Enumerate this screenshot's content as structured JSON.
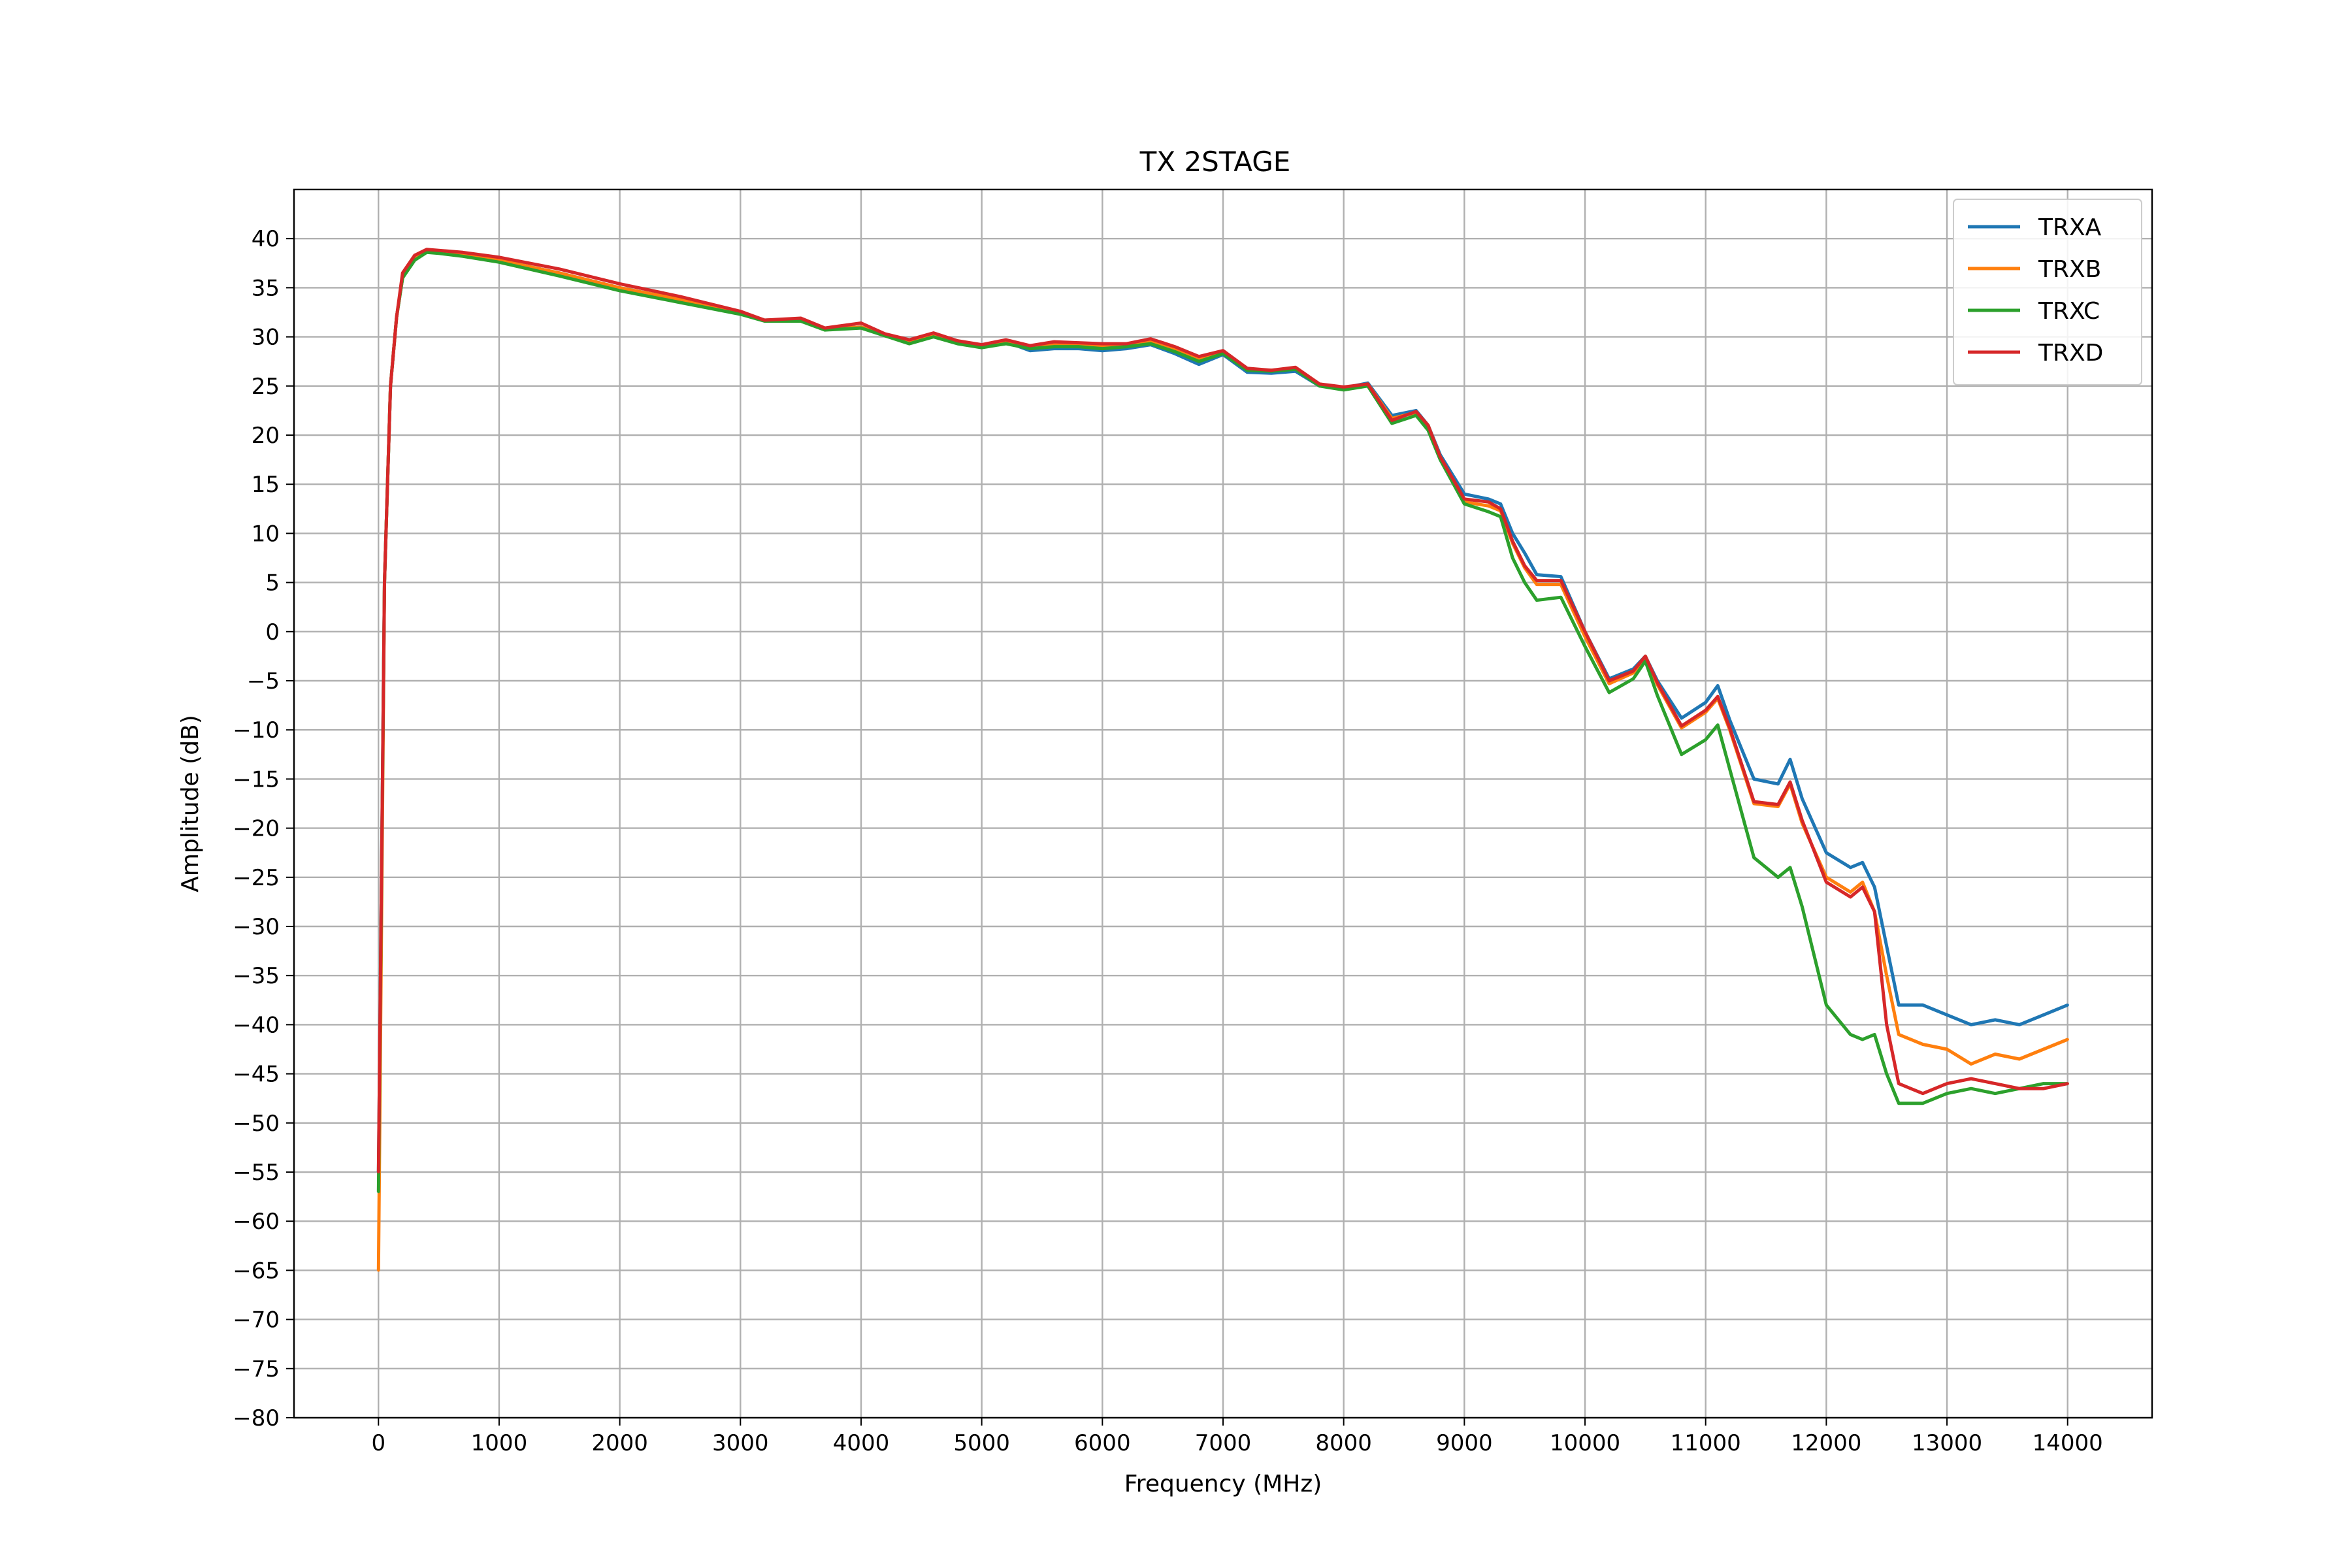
{
  "chart_data": {
    "type": "line",
    "title": "TX 2STAGE",
    "xlabel": "Frequency (MHz)",
    "ylabel": "Amplitude (dB)",
    "xlim": [
      -700,
      14700
    ],
    "ylim": [
      -80,
      45
    ],
    "xticks": [
      0,
      1000,
      2000,
      3000,
      4000,
      5000,
      6000,
      7000,
      8000,
      9000,
      10000,
      11000,
      12000,
      13000,
      14000
    ],
    "yticks": [
      -80,
      -75,
      -70,
      -65,
      -60,
      -55,
      -50,
      -45,
      -40,
      -35,
      -30,
      -25,
      -20,
      -15,
      -10,
      -5,
      0,
      5,
      10,
      15,
      20,
      25,
      30,
      35,
      40
    ],
    "xtick_labels": [
      "0",
      "1000",
      "2000",
      "3000",
      "4000",
      "5000",
      "6000",
      "7000",
      "8000",
      "9000",
      "10000",
      "11000",
      "12000",
      "13000",
      "14000"
    ],
    "ytick_labels": [
      "−80",
      "−75",
      "−70",
      "−65",
      "−60",
      "−55",
      "−50",
      "−45",
      "−40",
      "−35",
      "−30",
      "−25",
      "−20",
      "−15",
      "−10",
      "−5",
      "0",
      "5",
      "10",
      "15",
      "20",
      "25",
      "30",
      "35",
      "40"
    ],
    "grid": true,
    "legend_position": "top-right",
    "x": [
      0,
      50,
      100,
      150,
      200,
      300,
      400,
      500,
      700,
      1000,
      1500,
      2000,
      2500,
      3000,
      3200,
      3500,
      3700,
      4000,
      4200,
      4400,
      4600,
      4800,
      5000,
      5200,
      5400,
      5600,
      5800,
      6000,
      6200,
      6400,
      6600,
      6800,
      7000,
      7200,
      7400,
      7600,
      7800,
      8000,
      8200,
      8400,
      8600,
      8700,
      8800,
      9000,
      9200,
      9300,
      9400,
      9500,
      9600,
      9800,
      10000,
      10200,
      10400,
      10500,
      10600,
      10800,
      11000,
      11100,
      11200,
      11400,
      11600,
      11700,
      11800,
      12000,
      12200,
      12300,
      12400,
      12500,
      12600,
      12800,
      13000,
      13200,
      13400,
      13600,
      13800,
      14000
    ],
    "series": [
      {
        "name": "TRXA",
        "color": "#1f77b4",
        "values": [
          -55,
          5,
          25,
          32,
          36,
          38,
          38.8,
          38.7,
          38.4,
          37.8,
          36.5,
          35,
          33.8,
          32.5,
          31.7,
          31.8,
          30.8,
          31,
          30.2,
          29.5,
          30.2,
          29.4,
          29,
          29.5,
          28.6,
          28.8,
          28.8,
          28.6,
          28.8,
          29.2,
          28.3,
          27.2,
          28.2,
          26.4,
          26.3,
          26.5,
          25,
          24.8,
          25.3,
          22,
          22.5,
          21,
          18,
          14,
          13.5,
          13,
          10,
          8,
          5.8,
          5.6,
          0,
          -4.8,
          -3.8,
          -2.5,
          -5,
          -8.8,
          -7.2,
          -5.5,
          -9,
          -15,
          -15.5,
          -13,
          -17,
          -22.5,
          -24,
          -23.5,
          -26,
          -32,
          -38,
          -38,
          -39,
          -40,
          -39.5,
          -40,
          -39,
          -38
        ]
      },
      {
        "name": "TRXB",
        "color": "#ff7f0e",
        "values": [
          -65,
          5,
          25,
          32,
          36,
          38,
          38.8,
          38.7,
          38.4,
          37.8,
          36.5,
          35,
          33.8,
          32.5,
          31.7,
          31.8,
          30.8,
          31,
          30.2,
          29.5,
          30.2,
          29.4,
          29,
          29.5,
          28.9,
          29.3,
          29.3,
          29.1,
          29.2,
          29.6,
          28.8,
          27.7,
          28.5,
          26.7,
          26.6,
          26.8,
          25.2,
          24.8,
          25.2,
          21.7,
          22.3,
          21,
          17.8,
          13.2,
          12.8,
          12.3,
          9,
          6.5,
          4.8,
          4.8,
          -0.5,
          -5.3,
          -4.2,
          -2.5,
          -5.4,
          -9.8,
          -8.2,
          -6.8,
          -10,
          -17.5,
          -17.8,
          -15.5,
          -19.5,
          -25,
          -26.5,
          -25.5,
          -28.5,
          -35,
          -41,
          -42,
          -42.5,
          -44,
          -43,
          -43.5,
          -42.5,
          -41.5
        ]
      },
      {
        "name": "TRXC",
        "color": "#2ca02c",
        "values": [
          -57,
          5,
          25,
          32,
          36,
          37.8,
          38.6,
          38.5,
          38.2,
          37.6,
          36.2,
          34.7,
          33.5,
          32.3,
          31.6,
          31.6,
          30.7,
          30.9,
          30.1,
          29.3,
          30,
          29.3,
          28.9,
          29.3,
          28.8,
          29,
          29,
          28.8,
          29,
          29.3,
          28.5,
          27.5,
          28.3,
          26.6,
          26.5,
          26.7,
          25,
          24.6,
          25,
          21.2,
          22,
          20.5,
          17.5,
          13,
          12.2,
          11.7,
          7.5,
          5,
          3.2,
          3.5,
          -1.5,
          -6.2,
          -4.8,
          -3,
          -6.5,
          -12.5,
          -11,
          -9.5,
          -14,
          -23,
          -25,
          -24,
          -28,
          -38,
          -41,
          -41.5,
          -41,
          -45,
          -48,
          -48,
          -47,
          -46.5,
          -47,
          -46.5,
          -46,
          -46
        ]
      },
      {
        "name": "TRXD",
        "color": "#d62728",
        "values": [
          -55,
          5,
          25,
          32,
          36.5,
          38.3,
          38.9,
          38.8,
          38.6,
          38.1,
          36.9,
          35.4,
          34.1,
          32.6,
          31.7,
          31.9,
          30.9,
          31.4,
          30.3,
          29.7,
          30.4,
          29.6,
          29.2,
          29.7,
          29.1,
          29.5,
          29.4,
          29.3,
          29.3,
          29.8,
          29,
          28,
          28.6,
          26.8,
          26.6,
          26.9,
          25.2,
          24.9,
          25.2,
          21.5,
          22.4,
          21,
          17.8,
          13.5,
          13.2,
          12.5,
          9.2,
          6.7,
          5.2,
          5.2,
          0,
          -5,
          -4,
          -2.5,
          -5.2,
          -9.6,
          -8,
          -6.6,
          -9.8,
          -17.3,
          -17.6,
          -15.3,
          -19.2,
          -25.5,
          -27,
          -26,
          -28.5,
          -40,
          -46,
          -47,
          -46,
          -45.5,
          -46,
          -46.5,
          -46.5,
          -46
        ]
      }
    ]
  }
}
